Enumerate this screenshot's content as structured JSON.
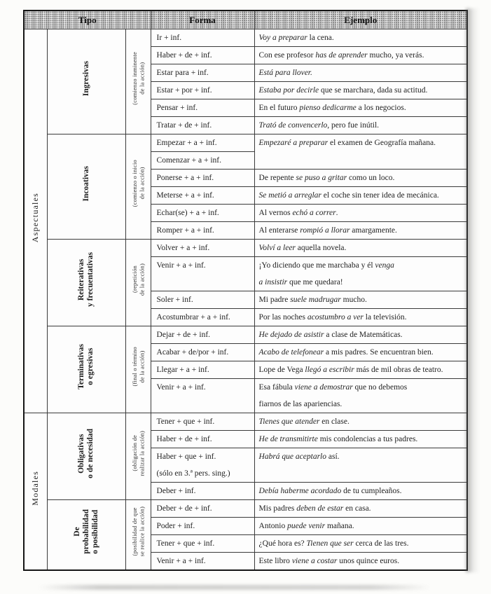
{
  "header": {
    "tipo": "Tipo",
    "forma": "Forma",
    "ejemplo": "Ejemplo"
  },
  "colors": {
    "ink": "#1d1d1d",
    "header_halftone": "#e2e2de",
    "border": "#3a3a3a"
  },
  "groups": [
    {
      "category": "Aspectuales",
      "subgroups": [
        {
          "name": "Ingresivas",
          "desc": "(comienzo inminente\nde la acción)",
          "rows": [
            {
              "forma": "Ir + inf.",
              "ejemplo": "*Voy a preparar* la cena."
            },
            {
              "forma": "Haber + de + inf.",
              "ejemplo": "Con ese profesor *has de aprender* mucho, ya verás."
            },
            {
              "forma": "Estar para + inf.",
              "ejemplo": "*Está para llover.*"
            },
            {
              "forma": "Estar + por + inf.",
              "ejemplo": "*Estaba por decirle* que se marchara, dada su actitud."
            },
            {
              "forma": "Pensar + inf.",
              "ejemplo": "En el futuro *pienso dedicarme* a los negocios."
            },
            {
              "forma": "Tratar + de + inf.",
              "ejemplo": "*Trató de convencerlo*, pero fue inútil."
            }
          ]
        },
        {
          "name": "Incoativas",
          "desc": "(comienzo o inicio\nde la acción)",
          "rows": [
            {
              "forma": "Empezar + a + inf.",
              "ejemplo": "*Empezaré a preparar* el examen de Geografía mañana.",
              "ejemplo_span": 2
            },
            {
              "forma": "Comenzar + a + inf.",
              "ejemplo_merged": true
            },
            {
              "forma": "Ponerse + a + inf.",
              "ejemplo": "De repente *se puso a gritar* como un loco."
            },
            {
              "forma": "Meterse + a + inf.",
              "ejemplo": "*Se metió a arreglar* el coche sin tener idea de mecánica."
            },
            {
              "forma": "Echar(se) + a + inf.",
              "ejemplo": "Al vernos *echó a correr*."
            },
            {
              "forma": "Romper + a + inf.",
              "ejemplo": "Al enterarse *rompió a llorar* amargamente."
            }
          ]
        },
        {
          "name": "Reiterativas\ny frecuentativas",
          "desc": "(repetición\nde la acción)",
          "rows": [
            {
              "forma": "Volver + a + inf.",
              "ejemplo": "*Volví a leer* aquella novela."
            },
            {
              "forma": "Venir + a + inf.",
              "ejemplo": "¡Yo diciendo que me marchaba y él *venga*\n*a insistir* que me quedara!"
            },
            {
              "forma": "Soler + inf.",
              "ejemplo": "Mi padre *suele madrugar* mucho."
            },
            {
              "forma": "Acostumbrar + a + inf.",
              "ejemplo": "Por las noches *acostumbro a ver* la televisión."
            }
          ]
        },
        {
          "name": "Terminativas\no egresivas",
          "desc": "(final o término\nde la acción)",
          "rows": [
            {
              "forma": "Dejar + de + inf.",
              "ejemplo": "*He dejado de asistir* a clase de Matemáticas."
            },
            {
              "forma": "Acabar + de/por + inf.",
              "ejemplo": "*Acabo de telefonear* a mis padres. Se encuentran bien."
            },
            {
              "forma": "Llegar + a + inf.",
              "ejemplo": "Lope de Vega *llegó a escribir* más de mil obras de teatro."
            },
            {
              "forma": "Venir + a + inf.",
              "ejemplo": "Esa fábula *viene a demostrar* que no debemos\nfiarnos de las apariencias."
            }
          ]
        }
      ]
    },
    {
      "category": "Modales",
      "subgroups": [
        {
          "name": "Obligativas\no de necesidad",
          "desc": "(obligación de\nrealizar la acción)",
          "rows": [
            {
              "forma": "Tener + que + inf.",
              "ejemplo": "*Tienes que atender* en clase."
            },
            {
              "forma": "Haber + de + inf.",
              "ejemplo": "*He de transmitirte* mis condolencias a tus padres."
            },
            {
              "forma": "Haber + que + inf.\n(sólo en 3.ª pers. sing.)",
              "ejemplo": "*Habrá que aceptarlo* así."
            },
            {
              "forma": "Deber + inf.",
              "ejemplo": "*Debía haberme acordado* de tu cumpleaños."
            }
          ]
        },
        {
          "name": "De\nprobabilidad\no posibilidad",
          "desc": "(posibilidad de que\nse realice la acción)",
          "rows": [
            {
              "forma": "Deber + de + inf.",
              "ejemplo": "Mis padres *deben de estar* en casa."
            },
            {
              "forma": "Poder + inf.",
              "ejemplo": "Antonio *puede venir* mañana."
            },
            {
              "forma": "Tener + que + inf.",
              "ejemplo": "¿Qué hora es? *Tienen que ser* cerca de las tres."
            },
            {
              "forma": "Venir + a + inf.",
              "ejemplo": "Este libro *viene a costar* unos quince euros."
            }
          ]
        }
      ]
    }
  ]
}
